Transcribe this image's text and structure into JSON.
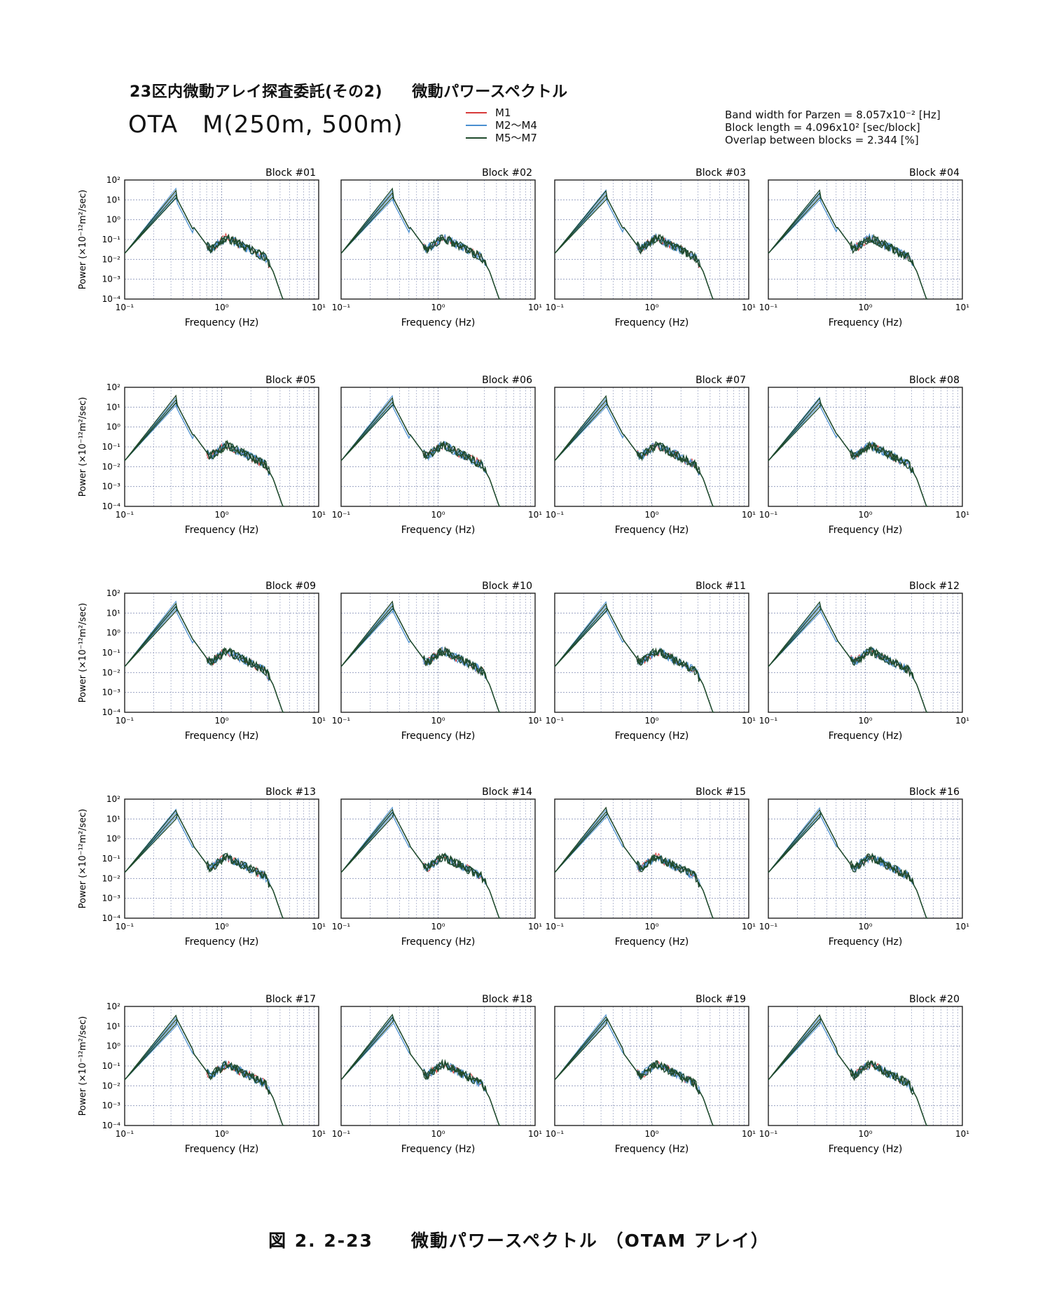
{
  "header": {
    "project": "23区内微動アレイ探査委託(その2)",
    "subject": "微動パワースペクトル",
    "site": "OTA　M(250m, 500m)"
  },
  "legend": [
    {
      "label": "M1",
      "color": "#d83a3a"
    },
    {
      "label": "M2～M4",
      "color": "#4a8fd0"
    },
    {
      "label": "M5～M7",
      "color": "#1f4a2c"
    }
  ],
  "params": [
    "Band width for Parzen = 8.057x10⁻² [Hz]",
    "Block length = 4.096x10² [sec/block]",
    "Overlap between blocks = 2.344 [%]"
  ],
  "caption": "図 2. 2-23　　微動パワースペクトル （OTAM アレイ）",
  "chart_data": {
    "type": "line",
    "xscale": "log",
    "yscale": "log",
    "xlim": [
      0.1,
      10
    ],
    "ylim": [
      0.0001,
      100
    ],
    "xlabel": "Frequency (Hz)",
    "ylabel": "Power (×10⁻¹²m²/sec)",
    "xticks": [
      "10⁻¹",
      "10⁰",
      "10¹"
    ],
    "yticks": [
      "10⁻⁴",
      "10⁻³",
      "10⁻²",
      "10⁻¹",
      "10⁰",
      "10¹",
      "10²"
    ],
    "grid": true,
    "series_names": [
      "M1",
      "M2～M4",
      "M5～M7"
    ],
    "approx_series": [
      {
        "name": "M1",
        "x": [
          0.1,
          0.2,
          0.33,
          0.5,
          0.7,
          1.0,
          1.5,
          2.5,
          3.2,
          4.0
        ],
        "y": [
          0.02,
          1.5,
          25,
          1.0,
          0.1,
          0.15,
          0.05,
          0.02,
          0.003,
          0.0001
        ]
      },
      {
        "name": "M2～M4",
        "x": [
          0.1,
          0.2,
          0.33,
          0.5,
          0.7,
          1.0,
          1.5,
          2.5,
          3.2,
          4.0
        ],
        "y": [
          0.05,
          2.0,
          15,
          1.5,
          0.15,
          0.2,
          0.08,
          0.03,
          0.002,
          0.0001
        ]
      },
      {
        "name": "M5～M7",
        "x": [
          0.1,
          0.2,
          0.33,
          0.5,
          0.7,
          1.0,
          1.5,
          2.5,
          3.2,
          4.0
        ],
        "y": [
          0.015,
          1.2,
          30,
          0.9,
          0.09,
          0.12,
          0.04,
          0.018,
          0.002,
          0.0001
        ]
      }
    ],
    "panels": [
      "Block #01",
      "Block #02",
      "Block #03",
      "Block #04",
      "Block #05",
      "Block #06",
      "Block #07",
      "Block #08",
      "Block #09",
      "Block #10",
      "Block #11",
      "Block #12",
      "Block #13",
      "Block #14",
      "Block #15",
      "Block #16",
      "Block #17",
      "Block #18",
      "Block #19",
      "Block #20"
    ]
  }
}
